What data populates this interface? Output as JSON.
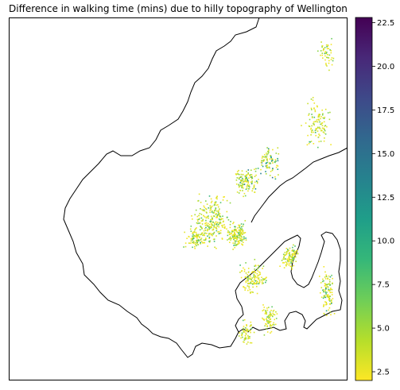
{
  "chart_data": {
    "type": "scatter",
    "title": "Difference in walking time (mins) due to hilly topography of Wellington",
    "colorbar": {
      "min": 2.0,
      "max": 22.8,
      "ticks": [
        2.5,
        5.0,
        7.5,
        10.0,
        12.5,
        15.0,
        17.5,
        20.0,
        22.5
      ],
      "tick_labels": [
        "2.5",
        "5.0",
        "7.5",
        "10.0",
        "12.5",
        "15.0",
        "17.5",
        "20.0",
        "22.5"
      ],
      "colormap": "viridis",
      "colormap_stops": [
        "#fde725",
        "#b5de2b",
        "#6ece58",
        "#35b779",
        "#1f9e89",
        "#26828e",
        "#31688e",
        "#3e4989",
        "#482878",
        "#440154"
      ]
    },
    "axes": {
      "visible": false,
      "grid": false
    },
    "coastline_color": "#000000",
    "clusters": [
      {
        "cx": 0.6,
        "cy": 0.56,
        "rx": 0.07,
        "ry": 0.09,
        "n": 260,
        "vmin": 2.3,
        "vmax": 9.5
      },
      {
        "cx": 0.67,
        "cy": 0.6,
        "rx": 0.04,
        "ry": 0.05,
        "n": 160,
        "vmin": 2.3,
        "vmax": 10.5
      },
      {
        "cx": 0.7,
        "cy": 0.45,
        "rx": 0.05,
        "ry": 0.05,
        "n": 130,
        "vmin": 2.5,
        "vmax": 14.0
      },
      {
        "cx": 0.77,
        "cy": 0.4,
        "rx": 0.04,
        "ry": 0.05,
        "n": 90,
        "vmin": 2.3,
        "vmax": 16.0
      },
      {
        "cx": 0.83,
        "cy": 0.66,
        "rx": 0.035,
        "ry": 0.04,
        "n": 110,
        "vmin": 2.3,
        "vmax": 9.0
      },
      {
        "cx": 0.72,
        "cy": 0.72,
        "rx": 0.05,
        "ry": 0.06,
        "n": 130,
        "vmin": 2.3,
        "vmax": 9.5
      },
      {
        "cx": 0.77,
        "cy": 0.83,
        "rx": 0.03,
        "ry": 0.05,
        "n": 80,
        "vmin": 2.3,
        "vmax": 7.5
      },
      {
        "cx": 0.94,
        "cy": 0.76,
        "rx": 0.03,
        "ry": 0.09,
        "n": 110,
        "vmin": 2.3,
        "vmax": 11.0
      },
      {
        "cx": 0.91,
        "cy": 0.29,
        "rx": 0.05,
        "ry": 0.09,
        "n": 110,
        "vmin": 2.3,
        "vmax": 9.0
      },
      {
        "cx": 0.94,
        "cy": 0.1,
        "rx": 0.03,
        "ry": 0.06,
        "n": 50,
        "vmin": 2.3,
        "vmax": 8.0
      },
      {
        "cx": 0.55,
        "cy": 0.61,
        "rx": 0.04,
        "ry": 0.04,
        "n": 90,
        "vmin": 2.3,
        "vmax": 10.0
      },
      {
        "cx": 0.7,
        "cy": 0.87,
        "rx": 0.03,
        "ry": 0.05,
        "n": 60,
        "vmin": 2.3,
        "vmax": 8.5
      }
    ]
  }
}
